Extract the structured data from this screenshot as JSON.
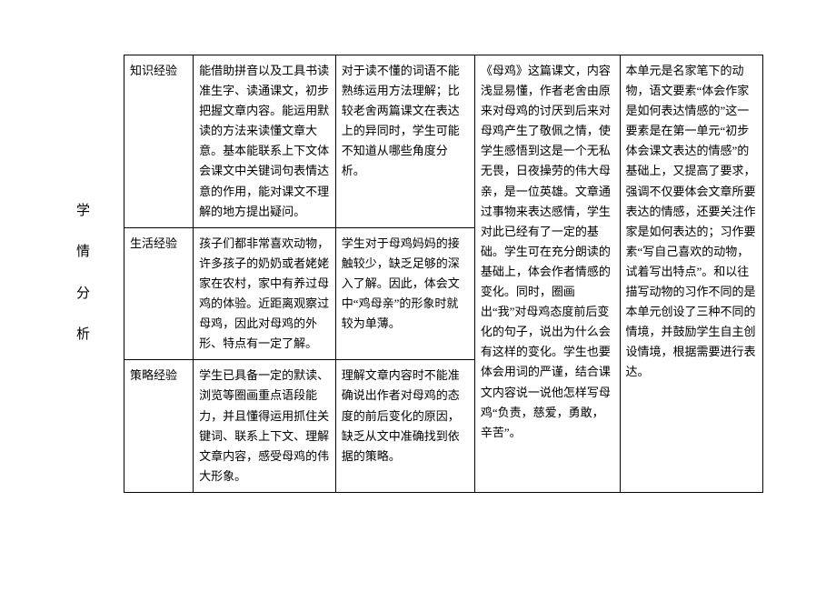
{
  "sideTitle": [
    "学",
    "情",
    "分",
    "析"
  ],
  "rows": [
    {
      "h": "知识经验",
      "c2": "能借助拼音以及工具书读准生字、读通课文，初步把握文章内容。能运用默读的方法来读懂文章大意。基本能联系上下文体会课文中关键词句表情达意的作用，能对课文不理解的地方提出疑问。",
      "c3": "对于读不懂的词语不能熟练运用方法理解；比较老舍两篇课文在表达上的异同时，学生可能不知道从哪些角度分析。"
    },
    {
      "h": "生活经验",
      "c2": "孩子们都非常喜欢动物，许多孩子的奶奶或者姥姥家在农村，家中有养过母鸡的体验。近距离观察过母鸡，因此对母鸡的外形、特点有一定了解。",
      "c3": "学生对于母鸡妈妈的接触较少，缺乏足够的深入了解。因此，体会文中“鸡母亲”的形象时就较为单薄。"
    },
    {
      "h": "策略经验",
      "c2": "学生已具备一定的默读、浏览等圈画重点语段能力，并且懂得运用抓住关键词、联系上下文、理解文章内容，感受母鸡的伟大形象。",
      "c3": "理解文章内容时不能准确说出作者对母鸡的态度的前后变化的原因，缺乏从文中准确找到依据的策略。"
    }
  ],
  "col4": "《母鸡》这篇课文，内容浅显易懂，作者老舍由原来对母鸡的讨厌到后来对母鸡产生了敬佩之情，使学生感悟到这是一个无私无畏，日夜操劳的伟大母亲，是一位英雄。文章通过事物来表达感情，学生对此已经有了一定的基础。学生可在充分朗读的基础上，体会作者情感的变化。同时，圈画出“我”对母鸡态度前后变化的句子，说出为什么会有这样的变化。学生也要体会用词的严谨，结合课文内容说一说他怎样写母鸡“负责，慈爱，勇敢，辛苦”。",
  "col5": "本单元是名家笔下的动物，语文要素“体会作家是如何表达情感的”这一要素是在第一单元“初步体会课文表达的情感”的基础上，又提高了要求，强调不仅要体会文章所要表达的情感，还要关注作家是如何表达的；习作要素“写自己喜欢的动物，试着写出特点”。和以往描写动物的习作不同的是本单元创设了三种不同的情境，并鼓励学生自主创设情境，根据需要进行表达。",
  "style": {
    "font_family": "SimSun",
    "font_size_pt": 10,
    "line_height": 1.7,
    "border_color": "#000000",
    "background_color": "#ffffff",
    "text_color": "#000000"
  }
}
